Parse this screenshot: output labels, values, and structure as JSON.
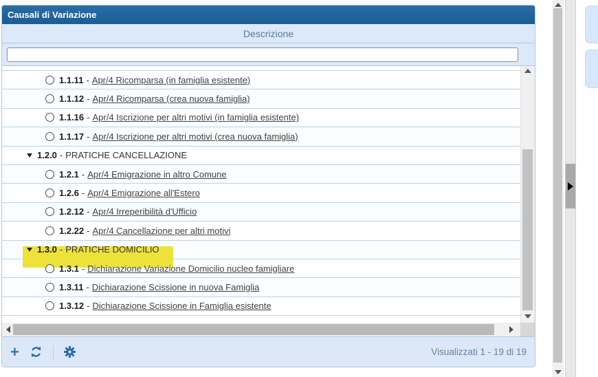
{
  "panel": {
    "title": "Causali di Variazione",
    "column_header": "Descrizione",
    "filter": {
      "value": ""
    },
    "status": "Visualizzati 1 - 19 di 19"
  },
  "ui": {
    "dash": "-"
  },
  "toolbar": {
    "icons": [
      "add-icon",
      "refresh-icon",
      "settings-icon"
    ],
    "add_glyph": "+"
  },
  "list": {
    "rows": [
      {
        "type": "item",
        "code": "1.1.11",
        "label": "Apr/4 Ricomparsa (in famiglia esistente)"
      },
      {
        "type": "item",
        "code": "1.1.12",
        "label": "Apr/4 Ricomparsa (crea nuova famiglia)"
      },
      {
        "type": "item",
        "code": "1.1.16",
        "label": "Apr/4 Iscrizione per altri motivi (in famiglia esistente)"
      },
      {
        "type": "item",
        "code": "1.1.17",
        "label": "Apr/4 Iscrizione per altri motivi (crea nuova famiglia)"
      },
      {
        "type": "group",
        "code": "1.2.0",
        "label": "PRATICHE CANCELLAZIONE"
      },
      {
        "type": "item",
        "code": "1.2.1",
        "label": "Apr/4 Emigrazione in altro Comune"
      },
      {
        "type": "item",
        "code": "1.2.6",
        "label": "Apr/4 Emigrazione all'Estero"
      },
      {
        "type": "item",
        "code": "1.2.12",
        "label": "Apr/4 Irreperibilità d'Ufficio"
      },
      {
        "type": "item",
        "code": "1.2.22",
        "label": "Apr/4 Cancellazione per altri motivi"
      },
      {
        "type": "group",
        "code": "1.3.0",
        "label": "PRATICHE DOMICILIO",
        "highlighted": true
      },
      {
        "type": "item",
        "code": "1.3.1",
        "label": "Dichiarazione Variazione Domicilio nucleo famigliare"
      },
      {
        "type": "item",
        "code": "1.3.11",
        "label": "Dichiarazione Scissione in nuova Famiglia"
      },
      {
        "type": "item",
        "code": "1.3.12",
        "label": "Dichiarazione Scissione in Famiglia esistente"
      }
    ]
  },
  "colors": {
    "header_blue": "#1e6196",
    "panel_light_blue": "#dce8f8",
    "highlight_yellow": "#ece23a",
    "row_separator": "#b9d2ec",
    "icon_blue": "#2e6ca7",
    "link_text": "#414141",
    "status_text": "#64809f"
  }
}
